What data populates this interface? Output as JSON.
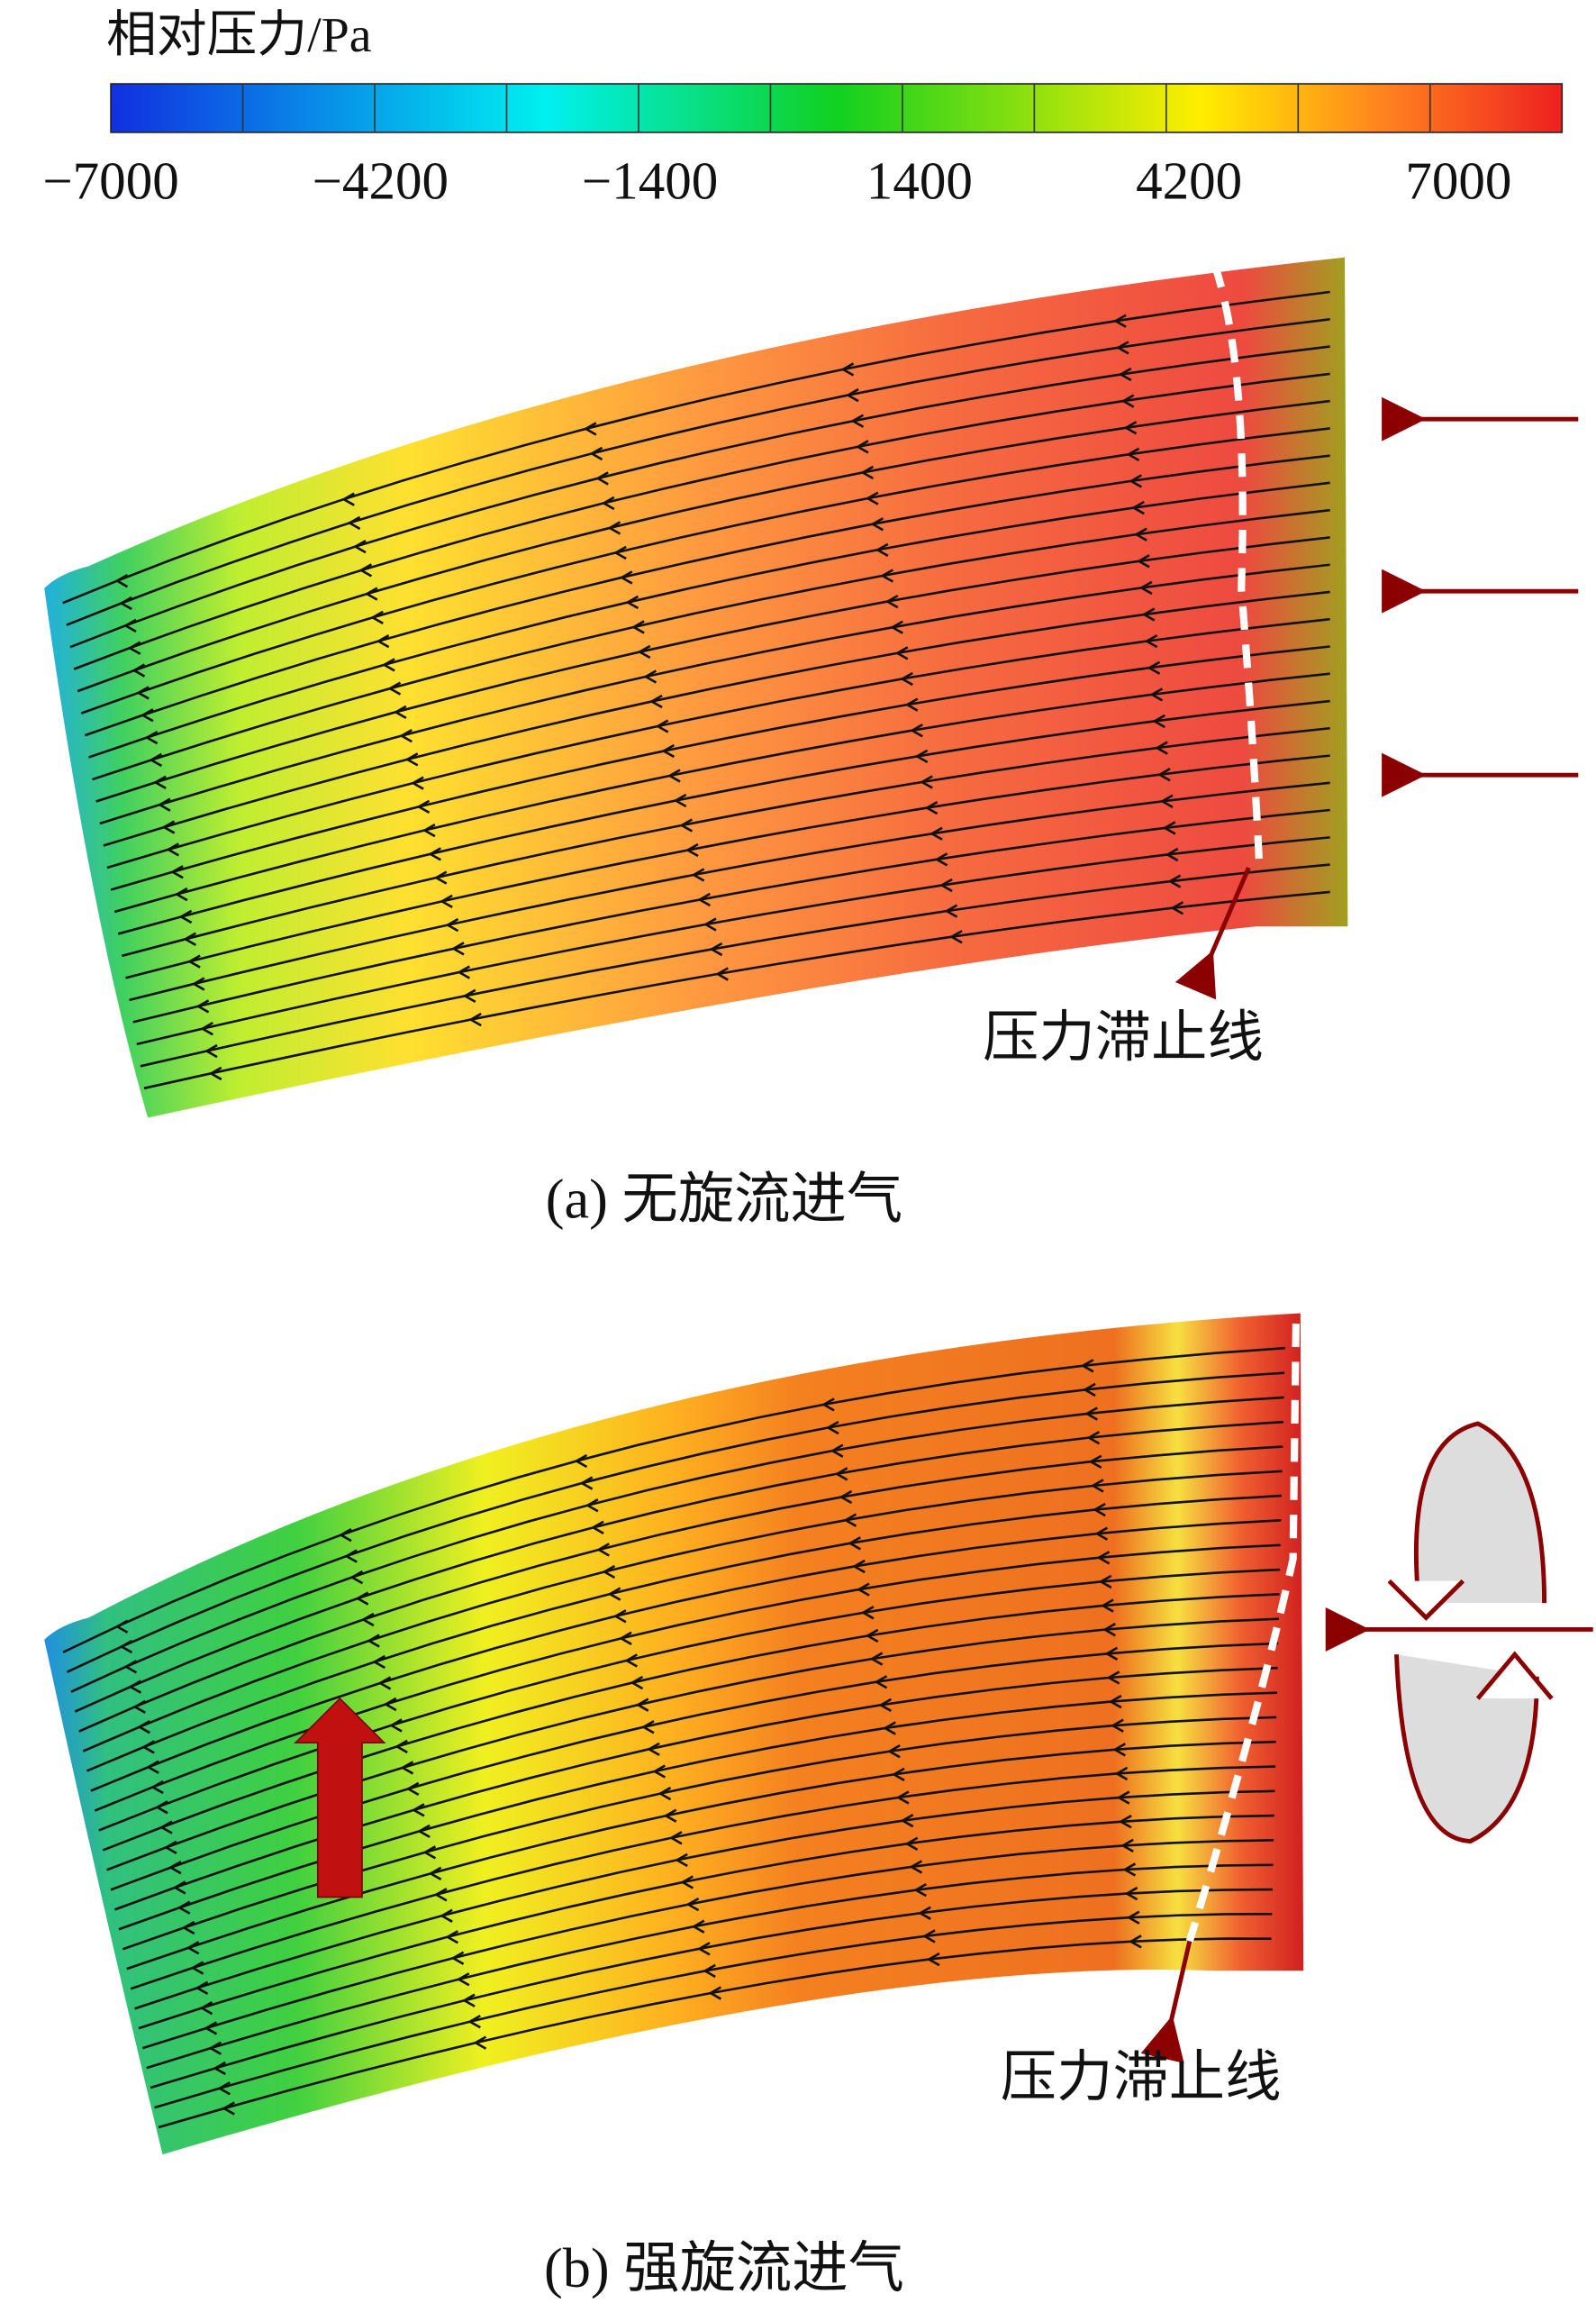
{
  "colorbar": {
    "title": "相对压力/Pa",
    "ticks": [
      "−7000",
      "−4200",
      "−1400",
      "1400",
      "4200",
      "7000"
    ]
  },
  "panels": [
    {
      "annotation": "压力滞止线",
      "caption": "(a) 无旋流进气"
    },
    {
      "annotation": "压力滞止线",
      "caption": "(b) 强旋流进气"
    }
  ]
}
